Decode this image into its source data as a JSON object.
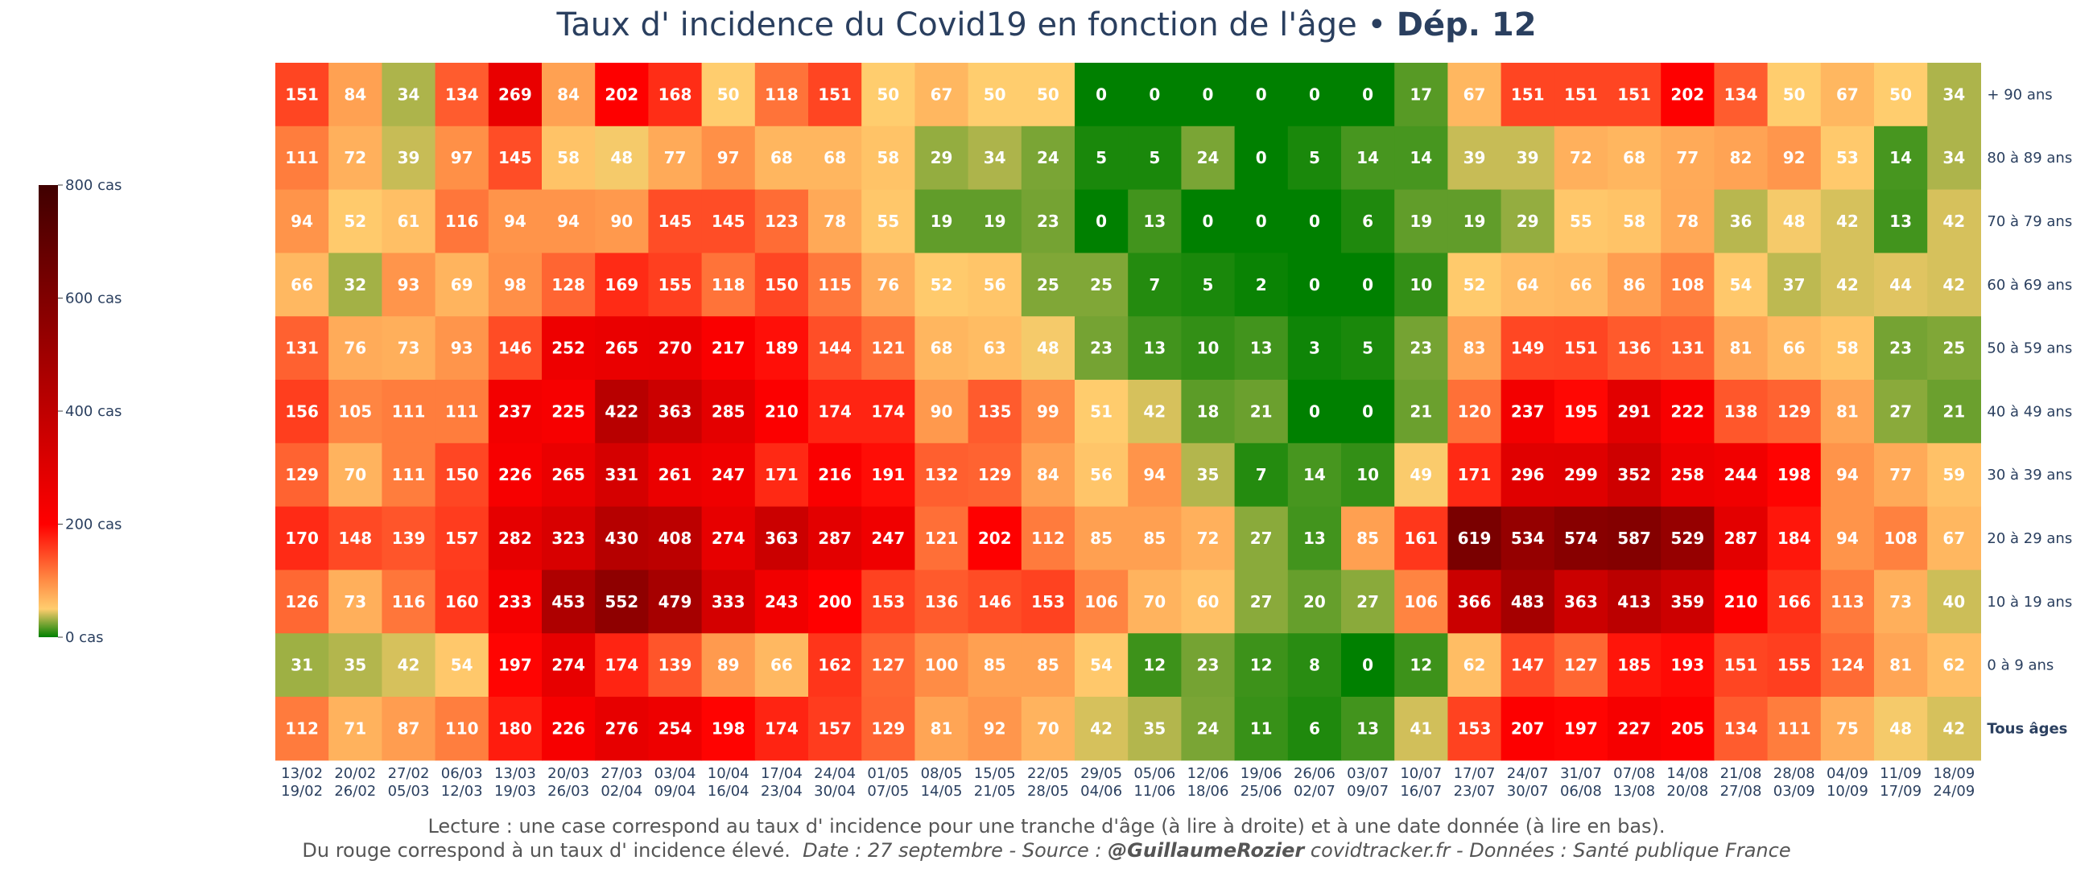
{
  "title": {
    "main": "Taux d' incidence du Covid19 en fonction de l'âge",
    "sep": " • ",
    "dep": "Dép. 12"
  },
  "footer": {
    "line1": "Lecture : une case correspond au taux d' incidence pour une tranche d'âge (à lire à droite) et à une date donnée (à lire en bas).",
    "line2_plain": "Du rouge correspond à un taux d' incidence élevé.",
    "line2_date": "Date : 27 septembre - Source : ",
    "line2_author": "@GuillaumeRozier",
    "line2_rest": " covidtracker.fr - Données : Santé publique France"
  },
  "colors": {
    "text": "#2a3f5f",
    "cell_text": "#ffffff"
  },
  "chart_data": {
    "type": "heatmap",
    "title": "Taux d' incidence du Covid19 en fonction de l'âge • Dép. 12",
    "x_labels": [
      [
        "13/02",
        "19/02"
      ],
      [
        "20/02",
        "26/02"
      ],
      [
        "27/02",
        "05/03"
      ],
      [
        "06/03",
        "12/03"
      ],
      [
        "13/03",
        "19/03"
      ],
      [
        "20/03",
        "26/03"
      ],
      [
        "27/03",
        "02/04"
      ],
      [
        "03/04",
        "09/04"
      ],
      [
        "10/04",
        "16/04"
      ],
      [
        "17/04",
        "23/04"
      ],
      [
        "24/04",
        "30/04"
      ],
      [
        "01/05",
        "07/05"
      ],
      [
        "08/05",
        "14/05"
      ],
      [
        "15/05",
        "21/05"
      ],
      [
        "22/05",
        "28/05"
      ],
      [
        "29/05",
        "04/06"
      ],
      [
        "05/06",
        "11/06"
      ],
      [
        "12/06",
        "18/06"
      ],
      [
        "19/06",
        "25/06"
      ],
      [
        "26/06",
        "02/07"
      ],
      [
        "03/07",
        "09/07"
      ],
      [
        "10/07",
        "16/07"
      ],
      [
        "17/07",
        "23/07"
      ],
      [
        "24/07",
        "30/07"
      ],
      [
        "31/07",
        "06/08"
      ],
      [
        "07/08",
        "13/08"
      ],
      [
        "14/08",
        "20/08"
      ],
      [
        "21/08",
        "27/08"
      ],
      [
        "28/08",
        "03/09"
      ],
      [
        "04/09",
        "10/09"
      ],
      [
        "11/09",
        "17/09"
      ],
      [
        "18/09",
        "24/09"
      ]
    ],
    "y_labels": [
      "+ 90 ans",
      "80 à 89 ans",
      "70 à 79 ans",
      "60 à 69 ans",
      "50 à 59 ans",
      "40 à 49 ans",
      "30 à 39 ans",
      "20 à 29 ans",
      "10 à 19 ans",
      "0 à 9 ans",
      "Tous âges"
    ],
    "y_bold": "Tous âges",
    "values": [
      [
        151,
        84,
        34,
        134,
        269,
        84,
        202,
        168,
        50,
        118,
        151,
        50,
        67,
        50,
        50,
        0,
        0,
        0,
        0,
        0,
        0,
        17,
        67,
        151,
        151,
        151,
        202,
        134,
        50,
        67,
        50,
        34
      ],
      [
        111,
        72,
        39,
        97,
        145,
        58,
        48,
        77,
        97,
        68,
        68,
        58,
        29,
        34,
        24,
        5,
        5,
        24,
        0,
        5,
        14,
        14,
        39,
        39,
        72,
        68,
        77,
        82,
        92,
        53,
        14,
        34
      ],
      [
        94,
        52,
        61,
        116,
        94,
        94,
        90,
        145,
        145,
        123,
        78,
        55,
        19,
        19,
        23,
        0,
        13,
        0,
        0,
        0,
        6,
        19,
        19,
        29,
        55,
        58,
        78,
        36,
        48,
        42,
        13,
        42
      ],
      [
        66,
        32,
        93,
        69,
        98,
        128,
        169,
        155,
        118,
        150,
        115,
        76,
        52,
        56,
        25,
        25,
        7,
        5,
        2,
        0,
        0,
        10,
        52,
        64,
        66,
        86,
        108,
        54,
        37,
        42,
        44,
        42
      ],
      [
        131,
        76,
        73,
        93,
        146,
        252,
        265,
        270,
        217,
        189,
        144,
        121,
        68,
        63,
        48,
        23,
        13,
        10,
        13,
        3,
        5,
        23,
        83,
        149,
        151,
        136,
        131,
        81,
        66,
        58,
        23,
        25
      ],
      [
        156,
        105,
        111,
        111,
        237,
        225,
        422,
        363,
        285,
        210,
        174,
        174,
        90,
        135,
        99,
        51,
        42,
        18,
        21,
        0,
        0,
        21,
        120,
        237,
        195,
        291,
        222,
        138,
        129,
        81,
        27,
        21
      ],
      [
        129,
        70,
        111,
        150,
        226,
        265,
        331,
        261,
        247,
        171,
        216,
        191,
        132,
        129,
        84,
        56,
        94,
        35,
        7,
        14,
        10,
        49,
        171,
        296,
        299,
        352,
        258,
        244,
        198,
        94,
        77,
        59
      ],
      [
        170,
        148,
        139,
        157,
        282,
        323,
        430,
        408,
        274,
        363,
        287,
        247,
        121,
        202,
        112,
        85,
        85,
        72,
        27,
        13,
        85,
        161,
        619,
        534,
        574,
        587,
        529,
        287,
        184,
        94,
        108,
        67
      ],
      [
        126,
        73,
        116,
        160,
        233,
        453,
        552,
        479,
        333,
        243,
        200,
        153,
        136,
        146,
        153,
        106,
        70,
        60,
        27,
        20,
        27,
        106,
        366,
        483,
        363,
        413,
        359,
        210,
        166,
        113,
        73,
        40
      ],
      [
        31,
        35,
        42,
        54,
        197,
        274,
        174,
        139,
        89,
        66,
        162,
        127,
        100,
        85,
        85,
        54,
        12,
        23,
        12,
        8,
        0,
        12,
        62,
        147,
        127,
        185,
        193,
        151,
        155,
        124,
        81,
        62
      ],
      [
        112,
        71,
        87,
        110,
        180,
        226,
        276,
        254,
        198,
        174,
        157,
        129,
        81,
        92,
        70,
        42,
        35,
        24,
        11,
        6,
        13,
        41,
        153,
        207,
        197,
        227,
        205,
        134,
        111,
        75,
        48,
        42
      ]
    ],
    "colorbar": {
      "min": 0,
      "max": 800,
      "ticks": [
        0,
        200,
        400,
        600,
        800
      ],
      "tick_labels": [
        "0 cas",
        "200 cas",
        "400 cas",
        "600 cas",
        "800 cas"
      ]
    },
    "colorscale": [
      [
        0,
        "#008000"
      ],
      [
        0.0625,
        "#ffcd6e"
      ],
      [
        0.125,
        "#ff8c45"
      ],
      [
        0.25,
        "#ff0000"
      ],
      [
        0.5,
        "#bf0000"
      ],
      [
        0.75,
        "#800000"
      ],
      [
        1,
        "#400000"
      ]
    ]
  }
}
